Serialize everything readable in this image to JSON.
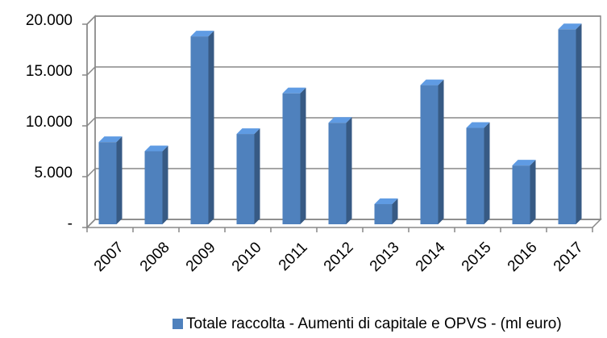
{
  "chart_data": {
    "type": "bar3d",
    "categories": [
      "2007",
      "2008",
      "2009",
      "2010",
      "2011",
      "2012",
      "2013",
      "2014",
      "2015",
      "2016",
      "2017"
    ],
    "series": [
      {
        "name": "Totale raccolta - Aumenti di capitale e OPVS - (ml euro)",
        "color": "#4f81bd",
        "values": [
          8400,
          7500,
          18800,
          9200,
          13200,
          10300,
          2300,
          14000,
          9800,
          6100,
          19500
        ]
      }
    ],
    "ylim": [
      0,
      20000
    ],
    "yticks": [
      {
        "value": 0,
        "label": "-"
      },
      {
        "value": 5000,
        "label": "5.000"
      },
      {
        "value": 10000,
        "label": "10.000"
      },
      {
        "value": 15000,
        "label": "15.000"
      },
      {
        "value": 20000,
        "label": "20.000"
      }
    ],
    "grid": true,
    "legend": "bottom"
  }
}
